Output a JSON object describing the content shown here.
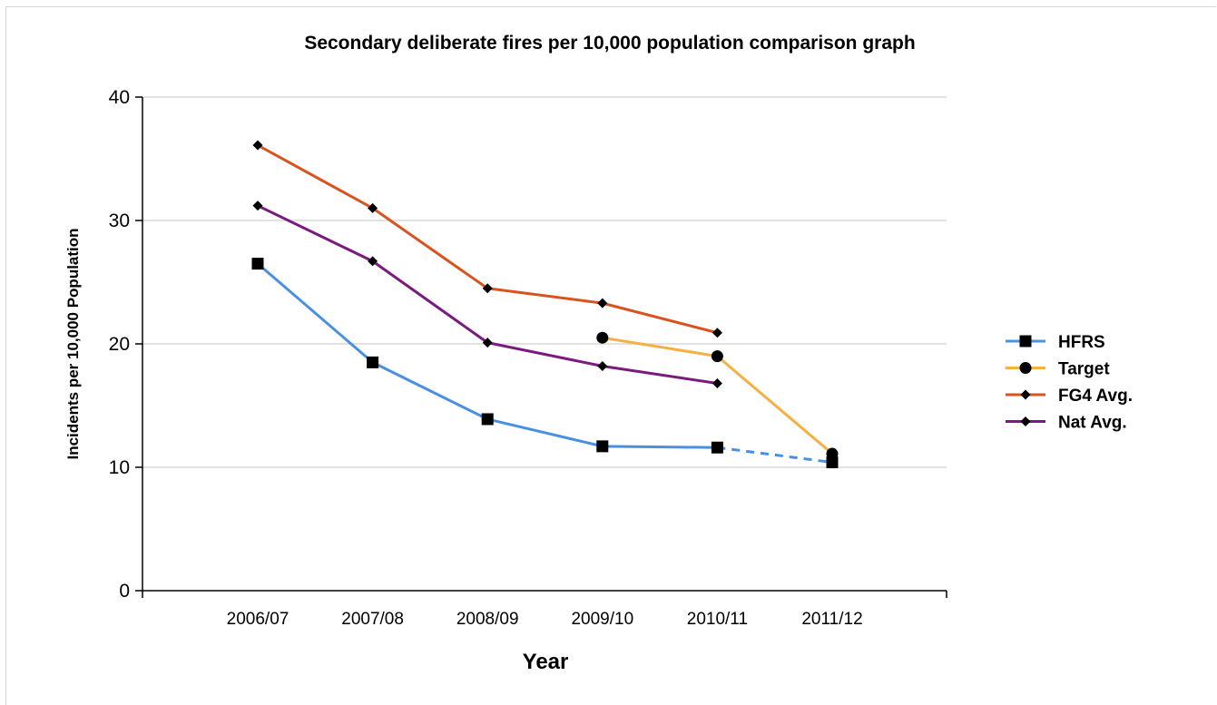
{
  "chart_data": {
    "type": "line",
    "title": "Secondary deliberate fires per 10,000 population comparison graph",
    "xlabel": "Year",
    "ylabel": "Incidents per 10,000 Population",
    "categories": [
      "2006/07",
      "2007/08",
      "2008/09",
      "2009/10",
      "2010/11",
      "2011/12"
    ],
    "ylim": [
      0,
      40
    ],
    "yticks": [
      "0",
      "10",
      "20",
      "30",
      "40"
    ],
    "grid": true,
    "legend_position": "right",
    "series": [
      {
        "name": "HFRS",
        "color": "#4a90e2",
        "marker": "square",
        "values": [
          26.5,
          18.5,
          13.9,
          11.7,
          11.6,
          10.4
        ],
        "dashed_from_index": 4
      },
      {
        "name": "Target",
        "color": "#f5b041",
        "marker": "circle",
        "values": [
          null,
          null,
          null,
          20.5,
          19.0,
          11.1
        ]
      },
      {
        "name": "FG4 Avg.",
        "color": "#d9531e",
        "marker": "diamond",
        "values": [
          36.1,
          31.0,
          24.5,
          23.3,
          20.9,
          null
        ]
      },
      {
        "name": "Nat Avg.",
        "color": "#7b1a7e",
        "marker": "diamond",
        "values": [
          31.2,
          26.7,
          20.1,
          18.2,
          16.8,
          null
        ]
      }
    ]
  }
}
